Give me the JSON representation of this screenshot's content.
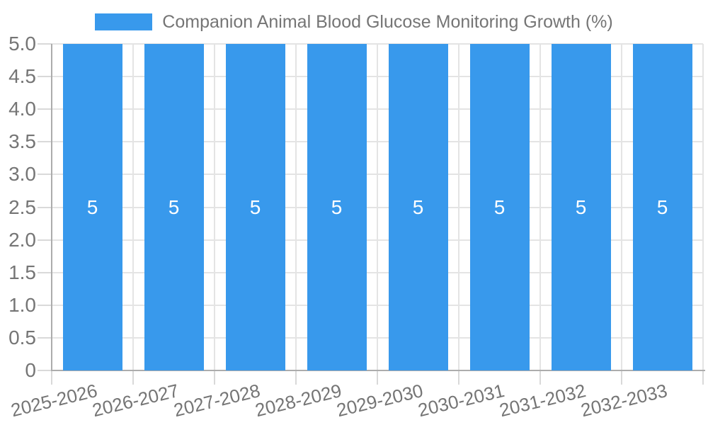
{
  "chart_data": {
    "type": "bar",
    "title": "Companion Animal Blood Glucose Monitoring Growth (%)",
    "categories": [
      "2025-2026",
      "2026-2027",
      "2027-2028",
      "2028-2029",
      "2029-2030",
      "2030-2031",
      "2031-2032",
      "2032-2033"
    ],
    "series": [
      {
        "name": "Companion Animal Blood Glucose Monitoring Growth (%)",
        "values": [
          5,
          5,
          5,
          5,
          5,
          5,
          5,
          5
        ]
      }
    ],
    "bar_value_labels": [
      "5",
      "5",
      "5",
      "5",
      "5",
      "5",
      "5",
      "5"
    ],
    "xlabel": "",
    "ylabel": "",
    "ylim": [
      0,
      5
    ],
    "ytick_values": [
      0,
      0.5,
      1,
      1.5,
      2,
      2.5,
      3,
      3.5,
      4,
      4.5,
      5
    ],
    "ytick_labels": [
      "0",
      "0.5",
      "1.0",
      "1.5",
      "2.0",
      "2.5",
      "3.0",
      "3.5",
      "4.0",
      "4.5",
      "5.0"
    ],
    "grid": true,
    "legend_position": "top",
    "colors": {
      "bar": "#3899EC",
      "bar_label": "#FFFFFF",
      "axis": "#ACACAC",
      "grid": "#E4E4E4",
      "tick": "#D9D9D9",
      "text": "#757575"
    }
  }
}
